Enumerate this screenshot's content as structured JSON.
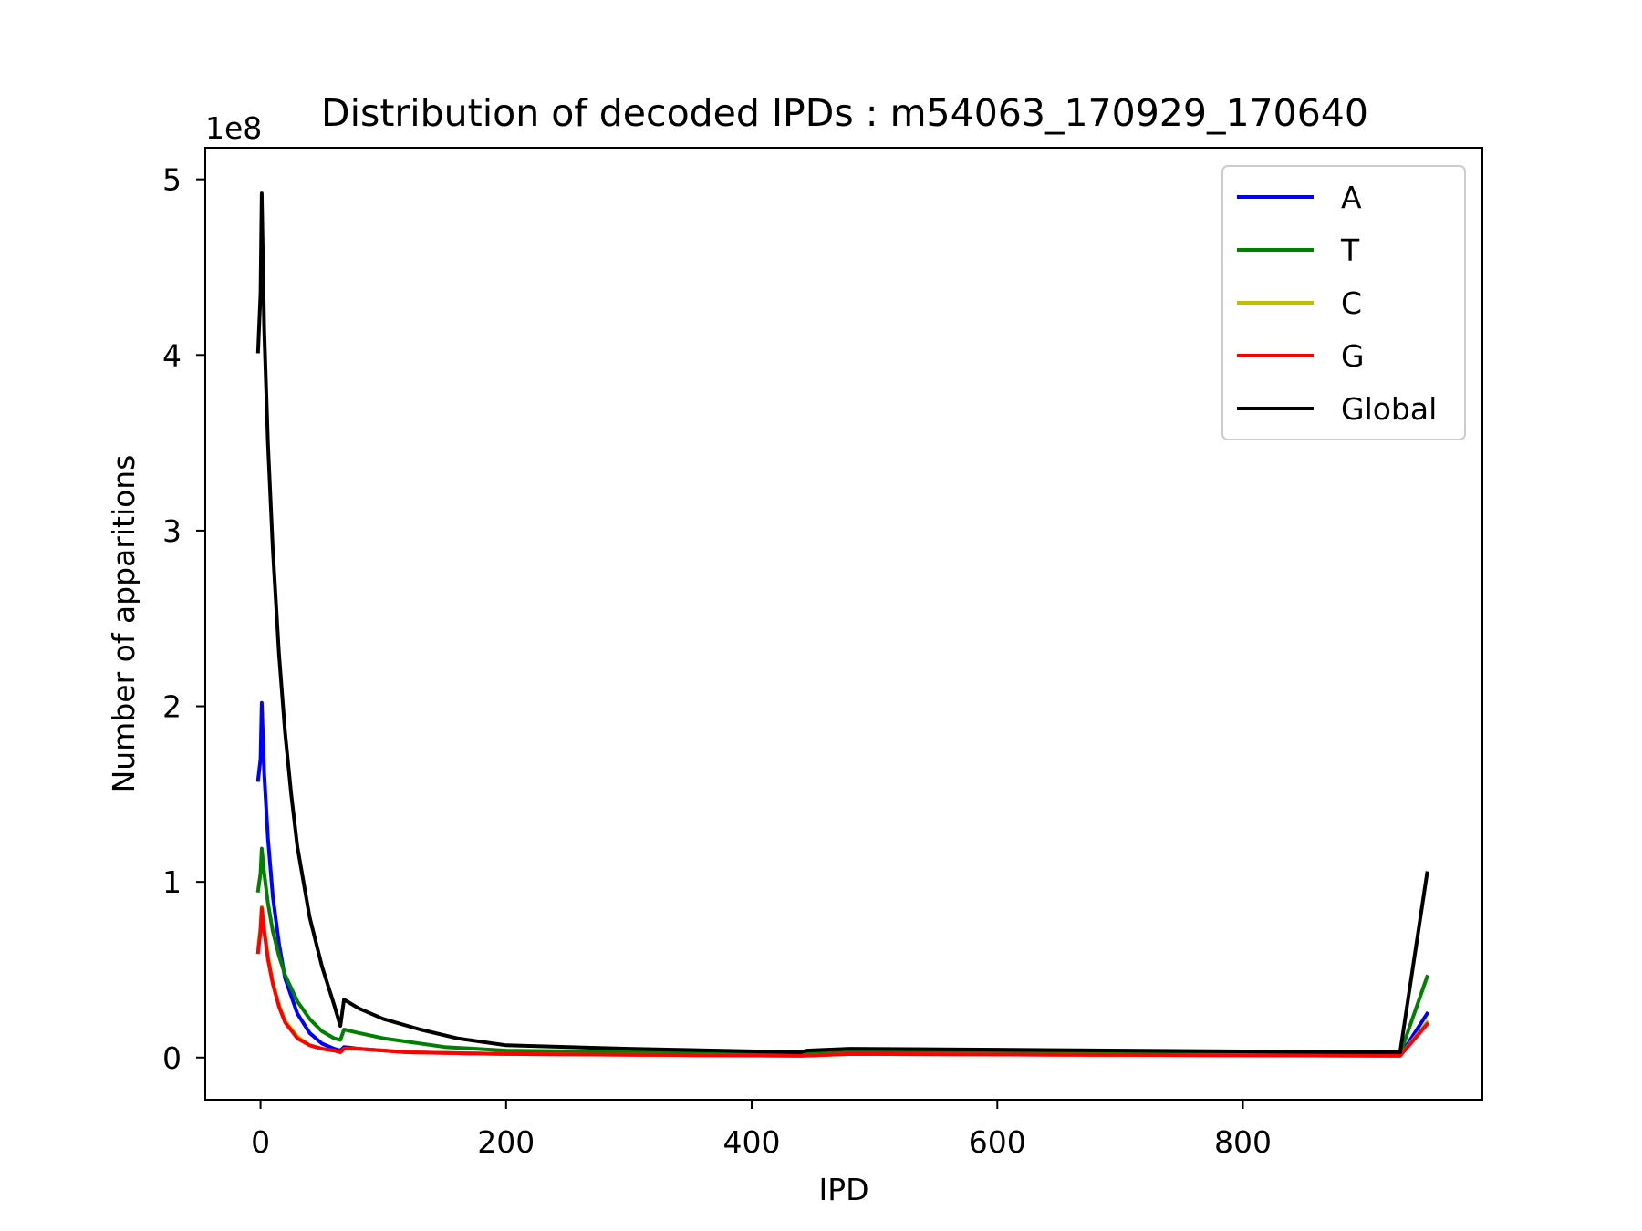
{
  "chart_data": {
    "type": "line",
    "title": "Distribution of decoded IPDs : m54063_170929_170640",
    "xlabel": "IPD",
    "ylabel": "Number of apparitions",
    "y_offset_text": "1e8",
    "xlim": [
      -45,
      995
    ],
    "ylim": [
      -0.24,
      5.18
    ],
    "x_ticks": [
      0,
      200,
      400,
      600,
      800
    ],
    "y_ticks": [
      0,
      1,
      2,
      3,
      4,
      5
    ],
    "x_tick_labels": [
      "0",
      "200",
      "400",
      "600",
      "800"
    ],
    "y_tick_labels": [
      "0",
      "1",
      "2",
      "3",
      "4",
      "5"
    ],
    "grid": false,
    "legend_position": "top-right",
    "series": [
      {
        "name": "A",
        "color": "#0000ff",
        "points": [
          [
            -2,
            1.58
          ],
          [
            0,
            1.7
          ],
          [
            1,
            2.02
          ],
          [
            3,
            1.62
          ],
          [
            6,
            1.25
          ],
          [
            10,
            0.92
          ],
          [
            15,
            0.65
          ],
          [
            20,
            0.45
          ],
          [
            30,
            0.25
          ],
          [
            40,
            0.14
          ],
          [
            50,
            0.08
          ],
          [
            60,
            0.05
          ],
          [
            65,
            0.04
          ],
          [
            68,
            0.06
          ],
          [
            80,
            0.05
          ],
          [
            120,
            0.03
          ],
          [
            200,
            0.02
          ],
          [
            440,
            0.01
          ],
          [
            480,
            0.02
          ],
          [
            928,
            0.01
          ],
          [
            950,
            0.25
          ]
        ]
      },
      {
        "name": "T",
        "color": "#008000",
        "points": [
          [
            -2,
            0.95
          ],
          [
            0,
            1.05
          ],
          [
            1,
            1.19
          ],
          [
            3,
            1.05
          ],
          [
            6,
            0.88
          ],
          [
            10,
            0.72
          ],
          [
            15,
            0.58
          ],
          [
            20,
            0.47
          ],
          [
            30,
            0.32
          ],
          [
            40,
            0.22
          ],
          [
            50,
            0.15
          ],
          [
            60,
            0.11
          ],
          [
            65,
            0.1
          ],
          [
            68,
            0.16
          ],
          [
            80,
            0.14
          ],
          [
            100,
            0.11
          ],
          [
            150,
            0.06
          ],
          [
            200,
            0.04
          ],
          [
            440,
            0.02
          ],
          [
            480,
            0.03
          ],
          [
            928,
            0.02
          ],
          [
            950,
            0.46
          ]
        ]
      },
      {
        "name": "C",
        "color": "#bfbf00",
        "points": [
          [
            -2,
            0.62
          ],
          [
            0,
            0.75
          ],
          [
            1,
            0.86
          ],
          [
            3,
            0.74
          ],
          [
            6,
            0.58
          ],
          [
            10,
            0.43
          ],
          [
            15,
            0.3
          ],
          [
            20,
            0.21
          ],
          [
            30,
            0.12
          ],
          [
            40,
            0.07
          ],
          [
            50,
            0.05
          ],
          [
            60,
            0.04
          ],
          [
            65,
            0.03
          ],
          [
            68,
            0.05
          ],
          [
            80,
            0.05
          ],
          [
            120,
            0.03
          ],
          [
            200,
            0.02
          ],
          [
            440,
            0.01
          ],
          [
            480,
            0.02
          ],
          [
            928,
            0.01
          ],
          [
            950,
            0.2
          ]
        ]
      },
      {
        "name": "G",
        "color": "#ff0000",
        "points": [
          [
            -2,
            0.6
          ],
          [
            0,
            0.72
          ],
          [
            1,
            0.85
          ],
          [
            3,
            0.72
          ],
          [
            6,
            0.56
          ],
          [
            10,
            0.42
          ],
          [
            15,
            0.29
          ],
          [
            20,
            0.2
          ],
          [
            30,
            0.11
          ],
          [
            40,
            0.07
          ],
          [
            50,
            0.05
          ],
          [
            60,
            0.04
          ],
          [
            65,
            0.03
          ],
          [
            68,
            0.05
          ],
          [
            80,
            0.05
          ],
          [
            120,
            0.03
          ],
          [
            200,
            0.02
          ],
          [
            440,
            0.01
          ],
          [
            480,
            0.02
          ],
          [
            928,
            0.01
          ],
          [
            950,
            0.19
          ]
        ]
      },
      {
        "name": "Global",
        "color": "#000000",
        "points": [
          [
            -2,
            4.02
          ],
          [
            0,
            4.35
          ],
          [
            1,
            4.92
          ],
          [
            3,
            4.15
          ],
          [
            6,
            3.5
          ],
          [
            10,
            2.9
          ],
          [
            15,
            2.3
          ],
          [
            20,
            1.85
          ],
          [
            25,
            1.5
          ],
          [
            30,
            1.2
          ],
          [
            40,
            0.8
          ],
          [
            50,
            0.52
          ],
          [
            60,
            0.3
          ],
          [
            65,
            0.18
          ],
          [
            68,
            0.33
          ],
          [
            80,
            0.28
          ],
          [
            100,
            0.22
          ],
          [
            130,
            0.16
          ],
          [
            160,
            0.11
          ],
          [
            200,
            0.07
          ],
          [
            300,
            0.05
          ],
          [
            440,
            0.03
          ],
          [
            445,
            0.04
          ],
          [
            480,
            0.05
          ],
          [
            600,
            0.045
          ],
          [
            800,
            0.035
          ],
          [
            928,
            0.03
          ],
          [
            950,
            1.05
          ]
        ]
      }
    ]
  }
}
